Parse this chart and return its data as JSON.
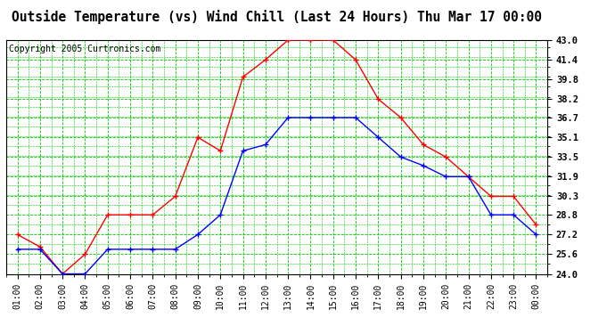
{
  "title": "Outside Temperature (vs) Wind Chill (Last 24 Hours) Thu Mar 17 00:00",
  "copyright": "Copyright 2005 Curtronics.com",
  "x_labels": [
    "01:00",
    "02:00",
    "03:00",
    "04:00",
    "05:00",
    "06:00",
    "07:00",
    "08:00",
    "09:00",
    "10:00",
    "11:00",
    "12:00",
    "13:00",
    "14:00",
    "15:00",
    "16:00",
    "17:00",
    "18:00",
    "19:00",
    "20:00",
    "21:00",
    "22:00",
    "23:00",
    "00:00"
  ],
  "red_data": [
    27.2,
    26.2,
    24.0,
    25.6,
    28.8,
    28.8,
    28.8,
    30.3,
    35.1,
    34.0,
    40.0,
    41.4,
    43.0,
    43.0,
    43.0,
    41.4,
    38.2,
    36.7,
    34.5,
    33.5,
    31.9,
    30.3,
    30.3,
    28.0
  ],
  "blue_data": [
    26.0,
    26.0,
    24.0,
    24.0,
    26.0,
    26.0,
    26.0,
    26.0,
    27.2,
    28.8,
    34.0,
    34.5,
    36.7,
    36.7,
    36.7,
    36.7,
    35.1,
    33.5,
    32.8,
    31.9,
    31.9,
    28.8,
    28.8,
    27.2
  ],
  "ylim": [
    24.0,
    43.0
  ],
  "yticks": [
    24.0,
    25.6,
    27.2,
    28.8,
    30.3,
    31.9,
    33.5,
    35.1,
    36.7,
    38.2,
    39.8,
    41.4,
    43.0
  ],
  "red_color": "#ff0000",
  "blue_color": "#0000ff",
  "grid_color": "#00cc00",
  "bg_color": "#ffffff",
  "plot_bg_color": "#ffffff",
  "title_fontsize": 10.5,
  "copyright_fontsize": 7,
  "tick_fontsize": 7.5,
  "xtick_fontsize": 7
}
